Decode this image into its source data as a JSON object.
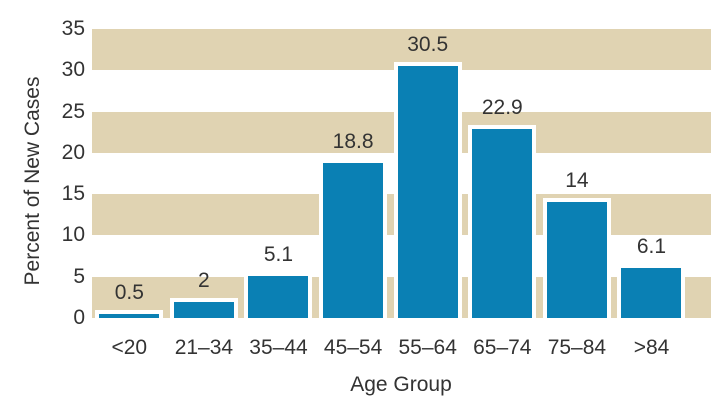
{
  "chart_data": {
    "type": "bar",
    "title": "",
    "xlabel": "Age Group",
    "ylabel": "Percent of New Cases",
    "categories": [
      "<20",
      "21–34",
      "35–44",
      "45–54",
      "55–64",
      "65–74",
      "75–84",
      ">84"
    ],
    "values": [
      0.5,
      2,
      5.1,
      18.8,
      30.5,
      22.9,
      14,
      6.1
    ],
    "value_labels": [
      "0.5",
      "2",
      "5.1",
      "18.8",
      "30.5",
      "22.9",
      "14",
      "6.1"
    ],
    "ylim": [
      0,
      35
    ],
    "yticks": [
      0,
      5,
      10,
      15,
      20,
      25,
      30,
      35
    ],
    "ytick_labels": [
      "0",
      "5",
      "10",
      "15",
      "20",
      "25",
      "30",
      "35"
    ],
    "band_intervals": [
      [
        0,
        5
      ],
      [
        10,
        15
      ],
      [
        20,
        25
      ],
      [
        30,
        35
      ]
    ],
    "legend": "none",
    "grid": "alternating horizontal beige bands every 5 units",
    "colors": {
      "bar": "#0a80b4",
      "bar_outline": "#ffffff",
      "band": "#e0d3b2",
      "text": "#333333",
      "background": "#ffffff"
    }
  }
}
